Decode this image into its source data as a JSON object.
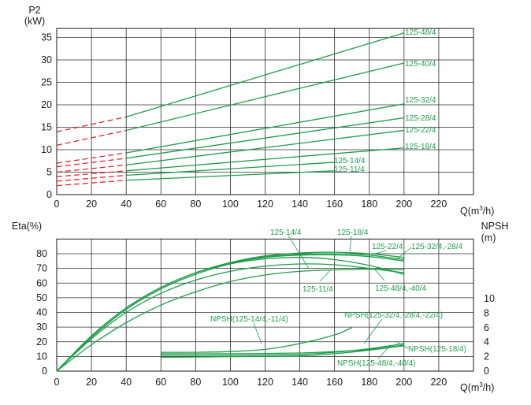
{
  "chart_data": [
    {
      "type": "line",
      "ylabel_top": "P2",
      "ylabel_unit": "(kW)",
      "xlabel_prefix": "Q(m",
      "xlabel_sup": "3",
      "xlabel_suffix": "/h)",
      "xlim": [
        0,
        240
      ],
      "ylim": [
        0,
        37
      ],
      "x_ticks": [
        "0",
        "20",
        "40",
        "60",
        "80",
        "100",
        "120",
        "140",
        "160",
        "180",
        "200",
        "220"
      ],
      "y_ticks": [
        "0",
        "5",
        "10",
        "15",
        "20",
        "25",
        "30",
        "35"
      ],
      "colors": {
        "curve": "#1e9e4a",
        "dashed": "#e0262b"
      },
      "series": [
        {
          "name": "125-48/4",
          "points": [
            [
              0,
              14
            ],
            [
              40,
              17.3
            ],
            [
              200,
              36
            ]
          ]
        },
        {
          "name": "125-40/4",
          "points": [
            [
              0,
              11
            ],
            [
              40,
              14.3
            ],
            [
              200,
              29.3
            ]
          ]
        },
        {
          "name": "125-32/4",
          "points": [
            [
              0,
              7
            ],
            [
              40,
              9.3
            ],
            [
              200,
              20.2
            ]
          ]
        },
        {
          "name": "125-28/4",
          "points": [
            [
              0,
              6.2
            ],
            [
              40,
              8.1
            ],
            [
              200,
              17.1
            ]
          ]
        },
        {
          "name": "125-22/4",
          "points": [
            [
              0,
              5
            ],
            [
              40,
              6.6
            ],
            [
              200,
              14.3
            ]
          ]
        },
        {
          "name": "125-18/4",
          "points": [
            [
              0,
              4
            ],
            [
              40,
              5.3
            ],
            [
              200,
              10.4
            ]
          ]
        },
        {
          "name": "125-14/4",
          "points": [
            [
              0,
              3
            ],
            [
              40,
              4.3
            ],
            [
              160,
              7.2
            ]
          ]
        },
        {
          "name": "125-11/4",
          "points": [
            [
              0,
              2
            ],
            [
              40,
              3.2
            ],
            [
              160,
              5.3
            ]
          ]
        }
      ]
    },
    {
      "type": "line",
      "ylabel_left": "Eta(%)",
      "ylabel_right_top": "NPSH",
      "ylabel_right_unit": "(m)",
      "xlabel_prefix": "Q(m",
      "xlabel_sup": "3",
      "xlabel_suffix": "/h)",
      "xlim": [
        0,
        240
      ],
      "ylim": [
        0,
        90
      ],
      "y2lim": [
        0,
        10
      ],
      "x_ticks": [
        "0",
        "20",
        "40",
        "60",
        "80",
        "100",
        "120",
        "140",
        "160",
        "180",
        "200",
        "220"
      ],
      "y_ticks": [
        "0",
        "10",
        "20",
        "30",
        "40",
        "50",
        "60",
        "70",
        "80"
      ],
      "y2_ticks": [
        "0",
        "2",
        "4",
        "6",
        "8",
        "10"
      ],
      "colors": {
        "curve": "#1e9e4a"
      },
      "efficiency_series": [
        {
          "name": "125-14/4",
          "points": [
            [
              0,
              0
            ],
            [
              20,
              22
            ],
            [
              40,
              40
            ],
            [
              60,
              53
            ],
            [
              80,
              62
            ],
            [
              100,
              68
            ],
            [
              120,
              71.5
            ],
            [
              140,
              73
            ],
            [
              160,
              72.5
            ],
            [
              180,
              70
            ],
            [
              200,
              67
            ]
          ]
        },
        {
          "name": "125-18/4",
          "points": [
            [
              0,
              0
            ],
            [
              20,
              24
            ],
            [
              40,
              43
            ],
            [
              60,
              57
            ],
            [
              80,
              67
            ],
            [
              100,
              74
            ],
            [
              120,
              78.5
            ],
            [
              140,
              80.5
            ],
            [
              160,
              81
            ],
            [
              180,
              80
            ],
            [
              200,
              77.5
            ]
          ]
        },
        {
          "name": "125-22/4",
          "points": [
            [
              0,
              0
            ],
            [
              20,
              24
            ],
            [
              40,
              43
            ],
            [
              60,
              57
            ],
            [
              80,
              67
            ],
            [
              100,
              74
            ],
            [
              120,
              78
            ],
            [
              140,
              79.5
            ],
            [
              160,
              80
            ],
            [
              180,
              79
            ],
            [
              200,
              76
            ]
          ]
        },
        {
          "name": "125-32/4, -28/4",
          "points": [
            [
              0,
              0
            ],
            [
              20,
              24
            ],
            [
              40,
              43
            ],
            [
              60,
              57
            ],
            [
              80,
              67
            ],
            [
              100,
              73.5
            ],
            [
              120,
              77.5
            ],
            [
              140,
              79
            ],
            [
              160,
              79.2
            ],
            [
              180,
              78
            ],
            [
              200,
              75
            ]
          ]
        },
        {
          "name": "125-48/4, -40/4",
          "points": [
            [
              0,
              0
            ],
            [
              20,
              23
            ],
            [
              40,
              42
            ],
            [
              60,
              56
            ],
            [
              80,
              66
            ],
            [
              100,
              73
            ],
            [
              120,
              76.5
            ],
            [
              140,
              77.5
            ],
            [
              160,
              76
            ],
            [
              180,
              72
            ],
            [
              200,
              66
            ]
          ]
        },
        {
          "name": "125-11/4",
          "points": [
            [
              0,
              0
            ],
            [
              20,
              18
            ],
            [
              40,
              33
            ],
            [
              60,
              45
            ],
            [
              80,
              54
            ],
            [
              100,
              61
            ],
            [
              120,
              65.5
            ],
            [
              140,
              68
            ],
            [
              160,
              69
            ],
            [
              180,
              69.5
            ],
            [
              200,
              69
            ]
          ]
        }
      ],
      "npsh_series": [
        {
          "name": "NPSH(125-14/4, -11/4)",
          "points": [
            [
              60,
              2.6
            ],
            [
              80,
              2.6
            ],
            [
              100,
              2.7
            ],
            [
              120,
              3.0
            ],
            [
              140,
              3.8
            ],
            [
              160,
              5.0
            ],
            [
              170,
              6.0
            ]
          ]
        },
        {
          "name": "NPSH(125-32/4, -28/4, -22/4)",
          "points": [
            [
              60,
              2.4
            ],
            [
              100,
              2.4
            ],
            [
              140,
              2.5
            ],
            [
              160,
              2.7
            ],
            [
              180,
              3.0
            ],
            [
              200,
              3.6
            ]
          ]
        },
        {
          "name": "NPSH(125-18/4)",
          "points": [
            [
              60,
              2.2
            ],
            [
              100,
              2.2
            ],
            [
              140,
              2.3
            ],
            [
              160,
              2.6
            ],
            [
              180,
              3.1
            ],
            [
              200,
              3.8
            ]
          ]
        },
        {
          "name": "NPSH(125-48/4, -40/4)",
          "points": [
            [
              60,
              1.9
            ],
            [
              100,
              2.0
            ],
            [
              140,
              2.1
            ],
            [
              160,
              2.4
            ],
            [
              180,
              2.9
            ],
            [
              200,
              3.5
            ]
          ]
        }
      ]
    }
  ],
  "labels": {
    "top": {
      "l48": "125-48/4",
      "l40": "125-40/4",
      "l32": "125-32/4",
      "l28": "125-28/4",
      "l22": "125-22/4",
      "l18": "125-18/4",
      "l14": "125-14/4",
      "l11": "125-11/4"
    },
    "bottom": {
      "e14": "125-14/4",
      "e18": "125-18/4",
      "e22": "125-22/4",
      "e32": "125-32/4,-28/4",
      "e48": "125-48/4,-40/4",
      "e11": "125-11/4",
      "n14": "NPSH(125-14/4,-11/4)",
      "n32": "NPSH(125-32/4,-28/4,-22/4)",
      "n18": "NPSH(125-18/4)",
      "n48": "NPSH(125-48/4,-40/4)"
    }
  }
}
